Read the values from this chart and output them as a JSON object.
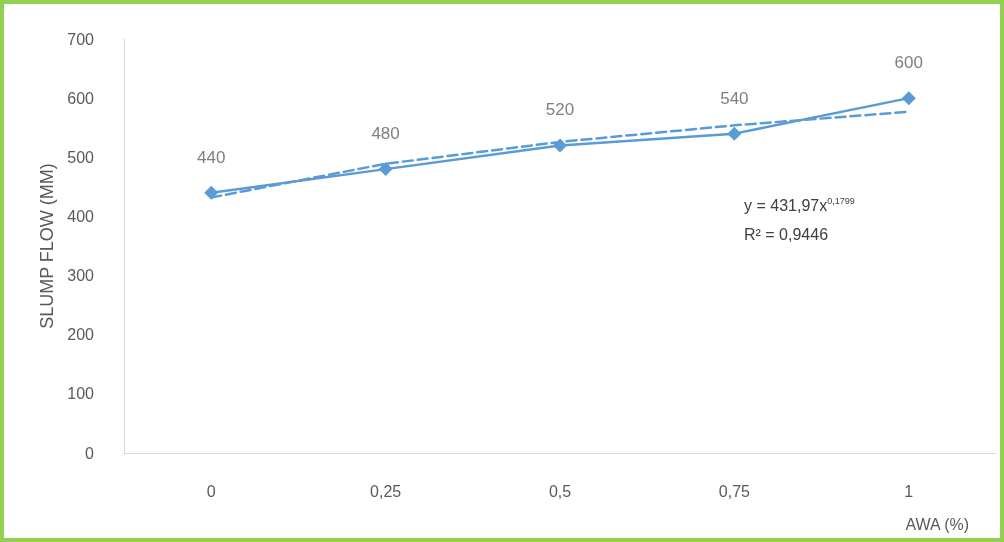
{
  "chart_data": {
    "type": "line",
    "xlabel": "AWA (%)",
    "ylabel": "SLUMP FLOW (MM)",
    "categories": [
      "0",
      "0,25",
      "0,5",
      "0,75",
      "1"
    ],
    "series": [
      {
        "color": "#5b9bd5",
        "values": [
          440,
          480,
          520,
          540,
          600
        ],
        "marker": "diamond",
        "line_style": "solid",
        "data_labels": true
      },
      {
        "type": "line",
        "color": "#5b9bd5",
        "x": [
          "0",
          "0,25",
          "0,5",
          "0,75",
          "1"
        ],
        "values": [
          432,
          489,
          526,
          554,
          577
        ],
        "marker": "none",
        "line_style": "dashed"
      }
    ],
    "ylim": [
      0,
      700
    ],
    "yticks": [
      0,
      100,
      200,
      300,
      400,
      500,
      600,
      700
    ],
    "grid": false,
    "annotations": [
      "y = 431,97x$^{0,1799}$",
      "R² = 0,9446"
    ]
  }
}
